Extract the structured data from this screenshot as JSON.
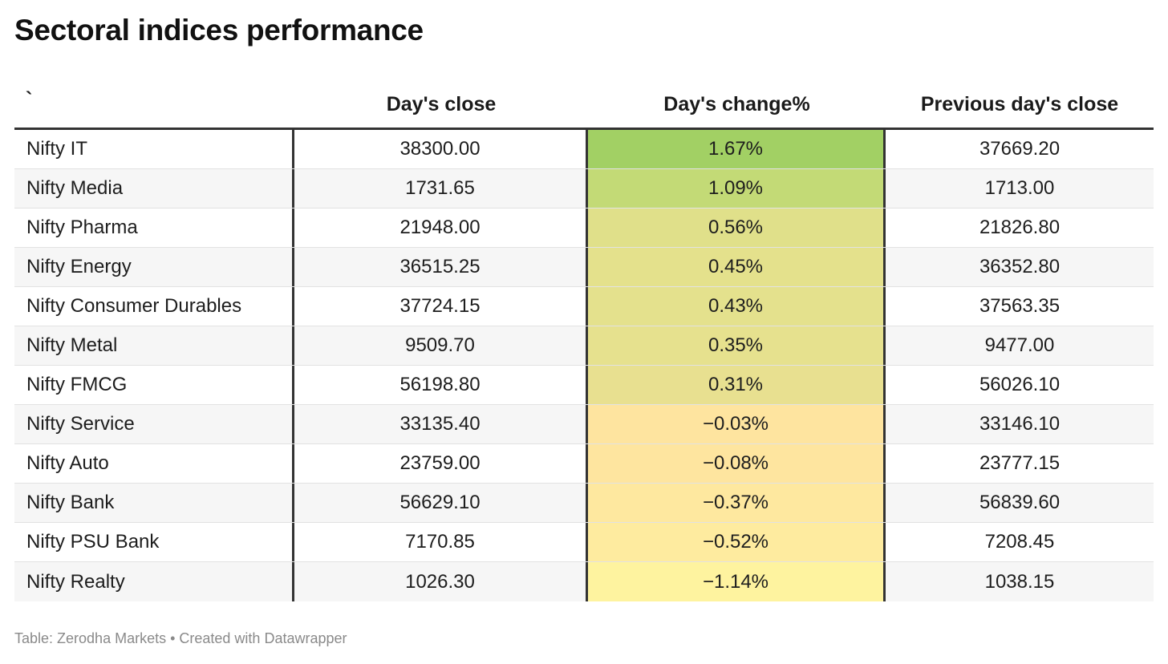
{
  "title": "Sectoral indices performance",
  "footer": "Table: Zerodha Markets • Created with Datawrapper",
  "chart_data": {
    "type": "table",
    "title": "Sectoral indices performance",
    "columns": [
      "`",
      "Day's close",
      "Day's change%",
      "Previous day's close"
    ],
    "rows": [
      {
        "name": "Nifty IT",
        "close": "38300.00",
        "change": "1.67%",
        "change_value": 1.67,
        "prev": "37669.20",
        "color": "#a2d064"
      },
      {
        "name": "Nifty Media",
        "close": "1731.65",
        "change": "1.09%",
        "change_value": 1.09,
        "prev": "1713.00",
        "color": "#c3da76"
      },
      {
        "name": "Nifty Pharma",
        "close": "21948.00",
        "change": "0.56%",
        "change_value": 0.56,
        "prev": "21826.80",
        "color": "#e0e08a"
      },
      {
        "name": "Nifty Energy",
        "close": "36515.25",
        "change": "0.45%",
        "change_value": 0.45,
        "prev": "36352.80",
        "color": "#e4e18c"
      },
      {
        "name": "Nifty Consumer Durables",
        "close": "37724.15",
        "change": "0.43%",
        "change_value": 0.43,
        "prev": "37563.35",
        "color": "#e4e18d"
      },
      {
        "name": "Nifty Metal",
        "close": "9509.70",
        "change": "0.35%",
        "change_value": 0.35,
        "prev": "9477.00",
        "color": "#e6e18e"
      },
      {
        "name": "Nifty FMCG",
        "close": "56198.80",
        "change": "0.31%",
        "change_value": 0.31,
        "prev": "56026.10",
        "color": "#e8e090"
      },
      {
        "name": "Nifty Service",
        "close": "33135.40",
        "change": "−0.03%",
        "change_value": -0.03,
        "prev": "33146.10",
        "color": "#fee49f"
      },
      {
        "name": "Nifty Auto",
        "close": "23759.00",
        "change": "−0.08%",
        "change_value": -0.08,
        "prev": "23777.15",
        "color": "#fee59f"
      },
      {
        "name": "Nifty Bank",
        "close": "56629.10",
        "change": "−0.37%",
        "change_value": -0.37,
        "prev": "56839.60",
        "color": "#fee89f"
      },
      {
        "name": "Nifty PSU Bank",
        "close": "7170.85",
        "change": "−0.52%",
        "change_value": -0.52,
        "prev": "7208.45",
        "color": "#feeb9f"
      },
      {
        "name": "Nifty Realty",
        "close": "1026.30",
        "change": "−1.14%",
        "change_value": -1.14,
        "prev": "1038.15",
        "color": "#fef39f"
      }
    ]
  }
}
